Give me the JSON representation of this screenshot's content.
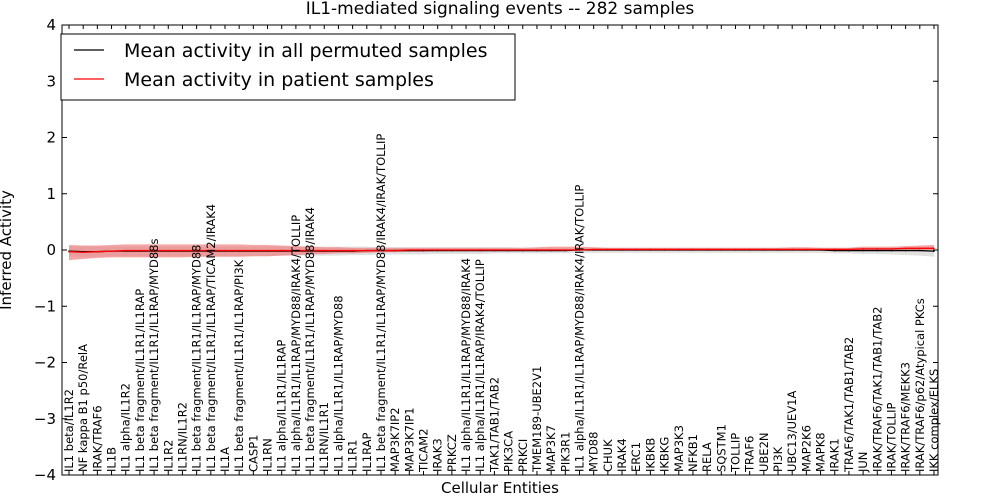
{
  "chart_data": {
    "type": "line",
    "title": "IL1-mediated signaling events -- 282 samples",
    "xlabel": "Cellular Entities",
    "ylabel": "Inferred Activity",
    "ylim": [
      -4,
      4
    ],
    "yticks": [
      -4,
      -3,
      -2,
      -1,
      0,
      1,
      2,
      3,
      4
    ],
    "ytick_labels": [
      "−4",
      "−3",
      "−2",
      "−1",
      "0",
      "1",
      "2",
      "3",
      "4"
    ],
    "categories": [
      "IL1 beta/IL1R2",
      "NF kappa B1 p50/RelA",
      "IRAK/TRAF6",
      "IL1B",
      "IL1 alpha/IL1R2",
      "IL1 beta fragment/IL1R1/IL1RAP",
      "IL1 beta fragment/IL1R1/IL1RAP/MYD88s",
      "IL1R2",
      "IL1RN/IL1R2",
      "IL1 beta fragment/IL1R1/IL1RAP/MYD88",
      "IL1 beta fragment/IL1R1/IL1RAP/TICAM2/IRAK4",
      "IL1A",
      "IL1 beta fragment/IL1R1/IL1RAP/PI3K",
      "CASP1",
      "IL1RN",
      "IL1 alpha/IL1R1/IL1RAP",
      "IL1 alpha/IL1R1/IL1RAP/MYD88/IRAK4/TOLLIP",
      "IL1 beta fragment/IL1R1/IL1RAP/MYD88/IRAK4",
      "IL1RN/IL1R1",
      "IL1 alpha/IL1R1/IL1RAP/MYD88",
      "IL1R1",
      "IL1RAP",
      "IL1 beta fragment/IL1R1/IL1RAP/MYD88/IRAK4/IRAK/TOLLIP",
      "MAP3K7IP2",
      "MAP3K7IP1",
      "TICAM2",
      "IRAK3",
      "PRKCZ",
      "IL1 alpha/IL1R1/IL1RAP/MYD88/IRAK4",
      "IL1 alpha/IL1R1/IL1RAP/IRAK4/TOLLIP",
      "TAK1/TAB1/TAB2",
      "PIK3CA",
      "PRKCI",
      "TMEM189-UBE2V1",
      "MAP3K7",
      "PIK3R1",
      "IL1 alpha/IL1R1/IL1RAP/MYD88/IRAK4/IRAK/TOLLIP",
      "MYD88",
      "CHUK",
      "IRAK4",
      "ERC1",
      "IKBKB",
      "IKBKG",
      "MAP3K3",
      "NFKB1",
      "RELA",
      "SQSTM1",
      "TOLLIP",
      "TRAF6",
      "UBE2N",
      "PI3K",
      "UBC13/UEV1A",
      "MAP2K6",
      "MAPK8",
      "IRAK1",
      "TRAF6/TAK1/TAB1/TAB2",
      "JUN",
      "IRAK/TRAF6/TAK1/TAB1/TAB2",
      "IRAK/TOLLIP",
      "IRAK/TRAF6/MEKK3",
      "IRAK/TRAF6/p62/Atypical PKCs",
      "IKK complex/ELKS"
    ],
    "series": [
      {
        "name": "Mean activity in all permuted samples",
        "color": "#000000",
        "values": [
          -0.02,
          -0.03,
          -0.03,
          -0.02,
          -0.02,
          -0.02,
          -0.02,
          -0.02,
          -0.02,
          -0.02,
          -0.02,
          -0.02,
          -0.02,
          -0.02,
          -0.02,
          -0.02,
          -0.02,
          -0.02,
          -0.02,
          -0.02,
          -0.02,
          -0.01,
          -0.01,
          -0.01,
          -0.01,
          -0.01,
          -0.01,
          -0.01,
          -0.01,
          -0.01,
          -0.01,
          -0.01,
          -0.01,
          -0.01,
          -0.01,
          -0.01,
          0.0,
          0.0,
          0.0,
          0.0,
          0.0,
          0.0,
          0.0,
          0.0,
          0.0,
          0.0,
          0.0,
          0.0,
          0.0,
          0.0,
          0.0,
          0.0,
          0.0,
          0.0,
          -0.01,
          -0.01,
          -0.01,
          -0.01,
          -0.01,
          -0.01,
          -0.01,
          -0.02
        ],
        "band_lower": [
          -0.12,
          -0.12,
          -0.12,
          -0.11,
          -0.11,
          -0.11,
          -0.11,
          -0.11,
          -0.11,
          -0.11,
          -0.11,
          -0.11,
          -0.11,
          -0.11,
          -0.11,
          -0.1,
          -0.1,
          -0.1,
          -0.1,
          -0.1,
          -0.09,
          -0.09,
          -0.08,
          -0.08,
          -0.08,
          -0.08,
          -0.07,
          -0.07,
          -0.07,
          -0.07,
          -0.06,
          -0.06,
          -0.06,
          -0.06,
          -0.06,
          -0.06,
          -0.05,
          -0.05,
          -0.05,
          -0.05,
          -0.05,
          -0.05,
          -0.05,
          -0.05,
          -0.05,
          -0.05,
          -0.05,
          -0.05,
          -0.05,
          -0.05,
          -0.05,
          -0.05,
          -0.05,
          -0.05,
          -0.06,
          -0.06,
          -0.07,
          -0.07,
          -0.08,
          -0.09,
          -0.1,
          -0.12
        ],
        "band_upper": [
          0.06,
          0.06,
          0.06,
          0.06,
          0.06,
          0.06,
          0.06,
          0.06,
          0.06,
          0.06,
          0.06,
          0.06,
          0.06,
          0.06,
          0.06,
          0.06,
          0.06,
          0.06,
          0.06,
          0.06,
          0.06,
          0.06,
          0.05,
          0.05,
          0.05,
          0.05,
          0.05,
          0.05,
          0.05,
          0.05,
          0.05,
          0.05,
          0.04,
          0.04,
          0.04,
          0.04,
          0.04,
          0.04,
          0.04,
          0.04,
          0.04,
          0.04,
          0.04,
          0.04,
          0.04,
          0.04,
          0.04,
          0.04,
          0.04,
          0.04,
          0.04,
          0.04,
          0.04,
          0.04,
          0.04,
          0.04,
          0.04,
          0.04,
          0.04,
          0.04,
          0.05,
          0.06
        ],
        "band_color": "#c8c8c8"
      },
      {
        "name": "Mean activity in patient samples",
        "color": "#ff0000",
        "values": [
          -0.03,
          -0.04,
          -0.03,
          -0.02,
          -0.01,
          -0.01,
          -0.01,
          -0.01,
          -0.01,
          -0.01,
          -0.01,
          -0.01,
          -0.01,
          -0.01,
          -0.01,
          -0.01,
          -0.01,
          -0.01,
          -0.01,
          -0.01,
          -0.01,
          -0.01,
          -0.01,
          -0.01,
          0.0,
          0.0,
          0.0,
          0.0,
          0.0,
          0.0,
          0.0,
          0.0,
          0.0,
          0.0,
          0.0,
          0.0,
          0.0,
          0.01,
          0.01,
          0.01,
          0.01,
          0.01,
          0.01,
          0.01,
          0.01,
          0.01,
          0.01,
          0.01,
          0.01,
          0.01,
          0.01,
          0.01,
          0.01,
          0.01,
          0.01,
          0.01,
          0.02,
          0.02,
          0.02,
          0.03,
          0.03,
          0.03
        ],
        "band_lower": [
          -0.18,
          -0.16,
          -0.14,
          -0.13,
          -0.13,
          -0.13,
          -0.13,
          -0.13,
          -0.13,
          -0.12,
          -0.12,
          -0.12,
          -0.12,
          -0.11,
          -0.11,
          -0.1,
          -0.09,
          -0.08,
          -0.07,
          -0.06,
          -0.06,
          -0.05,
          -0.04,
          -0.04,
          -0.03,
          -0.03,
          -0.02,
          -0.02,
          -0.02,
          -0.02,
          -0.02,
          -0.02,
          -0.02,
          -0.01,
          -0.01,
          -0.01,
          -0.01,
          -0.01,
          -0.01,
          -0.01,
          -0.01,
          -0.01,
          -0.01,
          -0.01,
          -0.01,
          -0.01,
          -0.01,
          -0.01,
          -0.01,
          -0.01,
          -0.01,
          -0.01,
          -0.01,
          -0.01,
          -0.01,
          -0.01,
          0.0,
          0.0,
          0.0,
          0.0,
          0.0,
          0.0
        ],
        "band_upper": [
          0.09,
          0.08,
          0.08,
          0.09,
          0.1,
          0.1,
          0.1,
          0.1,
          0.1,
          0.1,
          0.1,
          0.1,
          0.1,
          0.09,
          0.09,
          0.08,
          0.07,
          0.06,
          0.05,
          0.05,
          0.04,
          0.04,
          0.04,
          0.04,
          0.04,
          0.04,
          0.04,
          0.04,
          0.04,
          0.04,
          0.04,
          0.04,
          0.04,
          0.05,
          0.06,
          0.06,
          0.06,
          0.05,
          0.04,
          0.04,
          0.04,
          0.04,
          0.04,
          0.04,
          0.04,
          0.04,
          0.04,
          0.04,
          0.04,
          0.04,
          0.04,
          0.05,
          0.05,
          0.04,
          0.04,
          0.04,
          0.06,
          0.06,
          0.06,
          0.07,
          0.08,
          0.09
        ],
        "band_color": "#f08080"
      }
    ],
    "legend_position": "top-left"
  }
}
